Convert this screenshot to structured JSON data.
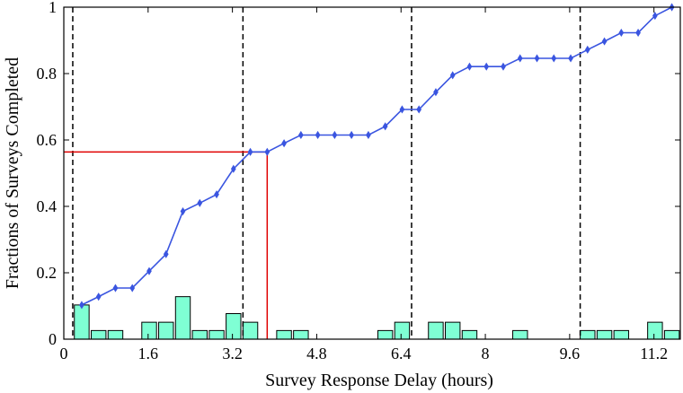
{
  "chart_data": {
    "type": "line",
    "xlabel": "Survey Response Delay (hours)",
    "ylabel": "Fractions of Surveys Completed",
    "xlim": [
      0,
      11.7
    ],
    "ylim": [
      0,
      1
    ],
    "x_ticks": [
      "0",
      "1.6",
      "3.2",
      "4.8",
      "6.4",
      "8",
      "9.6",
      "11.2"
    ],
    "x_tick_values": [
      0,
      1.6,
      3.2,
      4.8,
      6.4,
      8,
      9.6,
      11.2
    ],
    "y_ticks": [
      "0",
      "0.2",
      "0.4",
      "0.6",
      "0.8",
      "1"
    ],
    "y_tick_values": [
      0,
      0.2,
      0.4,
      0.6,
      0.8,
      1
    ],
    "grid": false,
    "series": [
      {
        "kind": "line",
        "color": "#3a55e0",
        "x": [
          0.34,
          0.66,
          0.98,
          1.3,
          1.62,
          1.94,
          2.26,
          2.58,
          2.9,
          3.22,
          3.54,
          3.86,
          4.18,
          4.5,
          4.82,
          5.14,
          5.46,
          5.78,
          6.1,
          6.42,
          6.74,
          7.06,
          7.38,
          7.7,
          8.02,
          8.34,
          8.66,
          8.98,
          9.3,
          9.62,
          9.94,
          10.26,
          10.58,
          10.9,
          11.22,
          11.54
        ],
        "y": [
          0.103,
          0.128,
          0.154,
          0.154,
          0.205,
          0.256,
          0.385,
          0.41,
          0.436,
          0.513,
          0.564,
          0.564,
          0.59,
          0.615,
          0.615,
          0.615,
          0.615,
          0.615,
          0.641,
          0.692,
          0.692,
          0.744,
          0.795,
          0.821,
          0.821,
          0.821,
          0.846,
          0.846,
          0.846,
          0.846,
          0.872,
          0.897,
          0.923,
          0.923,
          0.974,
          1.0
        ]
      },
      {
        "kind": "bar",
        "color": "#7fffd4",
        "bar_width": 0.28,
        "x": [
          0.34,
          0.66,
          0.98,
          1.3,
          1.62,
          1.94,
          2.26,
          2.58,
          2.9,
          3.22,
          3.54,
          3.86,
          4.18,
          4.5,
          4.82,
          5.14,
          5.46,
          5.78,
          6.1,
          6.42,
          6.74,
          7.06,
          7.38,
          7.7,
          8.02,
          8.34,
          8.66,
          8.98,
          9.3,
          9.62,
          9.94,
          10.26,
          10.58,
          10.9,
          11.22,
          11.54
        ],
        "y": [
          0.103,
          0.026,
          0.026,
          0,
          0.051,
          0.051,
          0.128,
          0.026,
          0.026,
          0.077,
          0.051,
          0,
          0.026,
          0.026,
          0,
          0,
          0,
          0,
          0.026,
          0.051,
          0,
          0.051,
          0.051,
          0.026,
          0,
          0,
          0.026,
          0,
          0,
          0,
          0.026,
          0.026,
          0.026,
          0,
          0.051,
          0.026
        ]
      }
    ],
    "vlines_dashed": [
      0.17,
      3.4,
      6.6,
      9.8
    ],
    "marker_lines": {
      "color": "#e00000",
      "x": 3.86,
      "y": 0.564
    }
  }
}
